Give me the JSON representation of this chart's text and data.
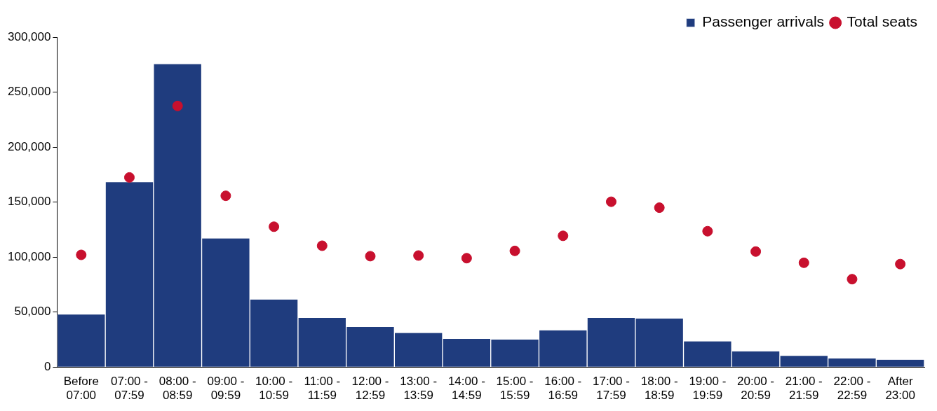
{
  "chart_data": {
    "type": "bar",
    "categories": [
      "Before 07:00",
      "07:00 - 07:59",
      "08:00 - 08:59",
      "09:00 - 09:59",
      "10:00 - 10:59",
      "11:00 - 11:59",
      "12:00 - 12:59",
      "13:00 - 13:59",
      "14:00 - 14:59",
      "15:00 - 15:59",
      "16:00 - 16:59",
      "17:00 - 17:59",
      "18:00 - 18:59",
      "19:00 - 19:59",
      "20:00 - 20:59",
      "21:00 - 21:59",
      "22:00 - 22:59",
      "After 23:00"
    ],
    "series": [
      {
        "name": "Passenger arrivals",
        "color": "#1f3c7e",
        "values": [
          47700,
          168000,
          275500,
          116900,
          61400,
          44700,
          36400,
          31000,
          25600,
          25000,
          33400,
          44700,
          44100,
          23300,
          14300,
          10100,
          7800,
          6600
        ]
      },
      {
        "name": "Total seats",
        "type": "scatter",
        "color": "#c8102e",
        "marker": "circle",
        "values": [
          102000,
          172400,
          237400,
          155700,
          127600,
          110300,
          100800,
          101400,
          99000,
          105600,
          119300,
          150300,
          144900,
          123500,
          105000,
          94800,
          79900,
          93600
        ]
      }
    ],
    "ylim": [
      0,
      300000
    ],
    "yticks": [
      0,
      {
        "value": 50000,
        "label": "50,000"
      },
      {
        "value": 100000,
        "label": "100,000"
      },
      {
        "value": 150000,
        "label": "150,000"
      },
      {
        "value": 200000,
        "label": "200,000"
      },
      {
        "value": 250000,
        "label": "250,000"
      },
      {
        "value": 300000,
        "label": "300,000"
      }
    ],
    "grid": false,
    "legend": "top right"
  }
}
